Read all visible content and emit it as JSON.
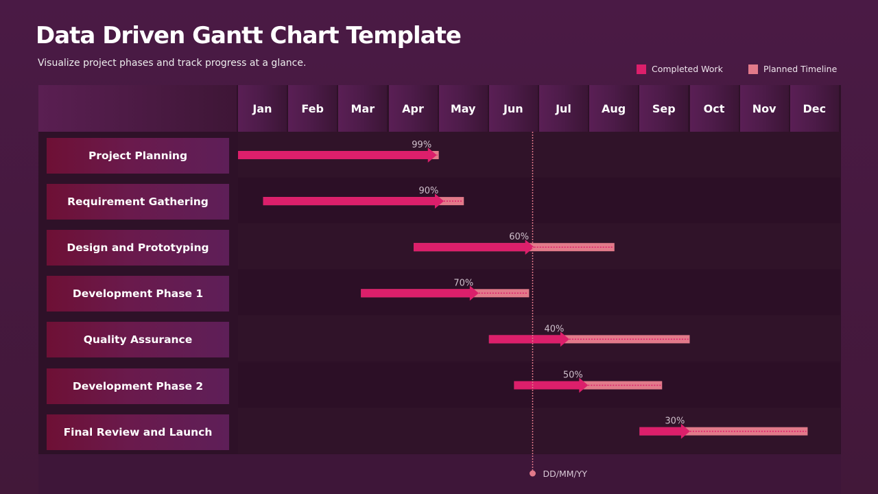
{
  "header": {
    "title": "Data Driven Gantt Chart Template",
    "subtitle": "Visualize project phases and track progress at a glance."
  },
  "legend": [
    {
      "label": "Completed Work",
      "color": "#dc1f6b"
    },
    {
      "label": "Planned Timeline",
      "color": "#e27a8a"
    }
  ],
  "chart_data": {
    "type": "gantt",
    "x_unit": "month",
    "xlim": [
      0,
      12
    ],
    "categories": [
      "Jan",
      "Feb",
      "Mar",
      "Apr",
      "May",
      "Jun",
      "Jul",
      "Aug",
      "Sep",
      "Oct",
      "Nov",
      "Dec"
    ],
    "tasks": [
      {
        "name": "Project Planning",
        "start": 0.0,
        "end": 4.0,
        "progress": 99,
        "progress_label": "99%"
      },
      {
        "name": "Requirement Gathering",
        "start": 0.5,
        "end": 4.5,
        "progress": 90,
        "progress_label": "90%"
      },
      {
        "name": "Design and Prototyping",
        "start": 3.5,
        "end": 7.5,
        "progress": 60,
        "progress_label": "60%"
      },
      {
        "name": "Development Phase 1",
        "start": 2.45,
        "end": 5.8,
        "progress": 70,
        "progress_label": "70%"
      },
      {
        "name": "Quality Assurance",
        "start": 5.0,
        "end": 9.0,
        "progress": 40,
        "progress_label": "40%"
      },
      {
        "name": "Development Phase 2",
        "start": 5.5,
        "end": 8.45,
        "progress": 50,
        "progress_label": "50%"
      },
      {
        "name": "Final Review and Launch",
        "start": 8.0,
        "end": 11.35,
        "progress": 30,
        "progress_label": "30%"
      }
    ],
    "today_marker": {
      "value": 5.87,
      "label": "DD/MM/YY",
      "color": "#e27a8a"
    },
    "colors": {
      "completed": "#dc1f6b",
      "planned": "#e27a8a"
    }
  }
}
